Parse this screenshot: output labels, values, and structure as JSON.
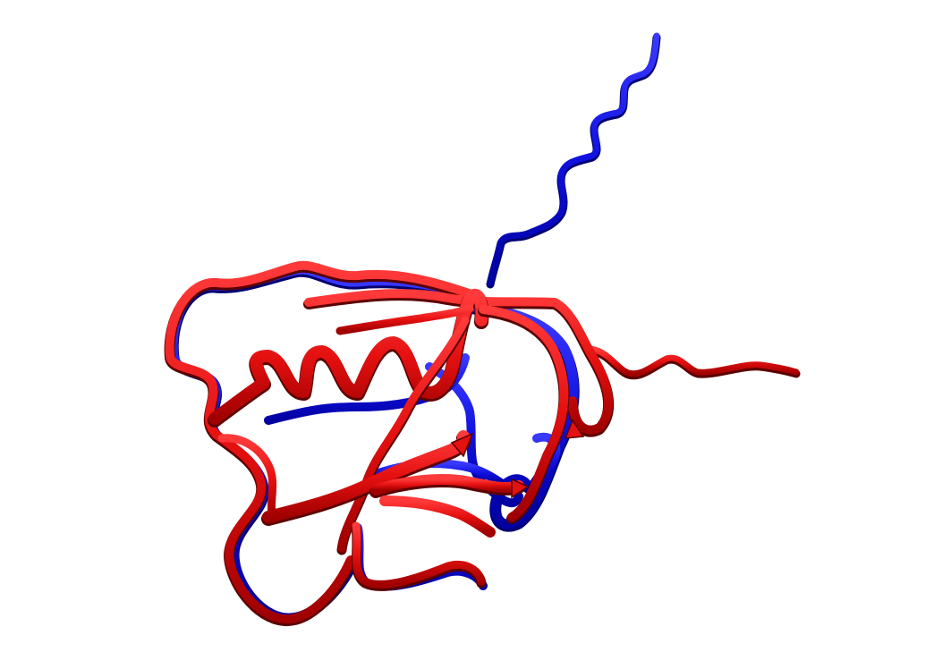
{
  "scene": {
    "background": "#ffffff",
    "structures": [
      {
        "id": "structure-a",
        "color": "#1010e0",
        "shadow": "#000060"
      },
      {
        "id": "structure-b",
        "color": "#e51010",
        "shadow": "#5a0000"
      }
    ]
  }
}
